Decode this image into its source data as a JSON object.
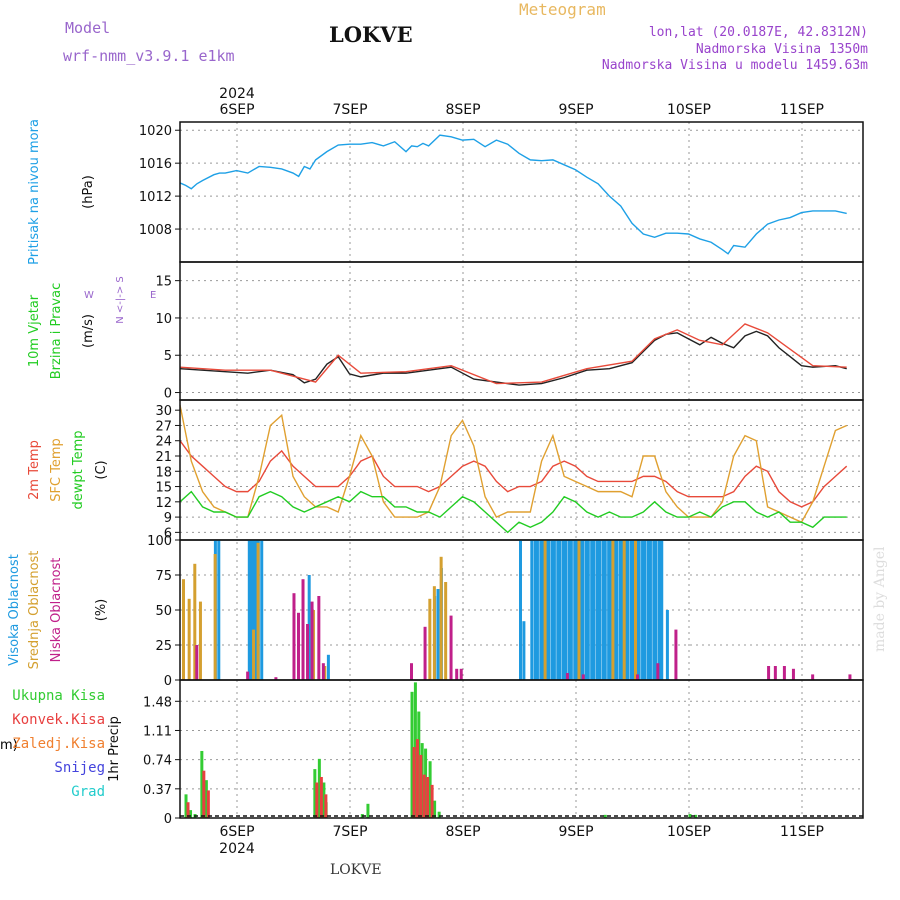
{
  "header": {
    "model_label": "Model",
    "model_name": "wrf-nmm_v3.9.1  e1km",
    "location": "LOKVE",
    "meteogram": "Meteogram",
    "coords": "lon,lat (20.0187E, 42.8312N)",
    "elevation": "Nadmorska Visina 1350m",
    "model_elevation": "Nadmorska Visina u modelu 1459.63m",
    "footer_location": "LOKVE",
    "watermark": "made by Angel"
  },
  "colors": {
    "pressure": "#1ea0e6",
    "t2m": "#e84a3a",
    "sfc": "#e0a030",
    "dewpt": "#22cc22",
    "cloud_high": "#1e9ae0",
    "cloud_mid": "#d4a030",
    "cloud_low": "#c0208a",
    "precip_total": "#33cc33",
    "precip_conv": "#e84040",
    "precip_frozen": "#f08030",
    "precip_snow": "#4444dd",
    "precip_grad": "#22cccc",
    "model": "#9966cc"
  },
  "time_axis": {
    "year": "2024",
    "days": [
      "6SEP",
      "7SEP",
      "8SEP",
      "9SEP",
      "10SEP",
      "11SEP"
    ]
  },
  "chart_data": [
    {
      "id": "pressure",
      "type": "line",
      "ylabel_lines": [
        "Pritisak na nivou mora"
      ],
      "unit": "(hPa)",
      "ylim": [
        1004,
        1021
      ],
      "yticks": [
        1008,
        1012,
        1016,
        1020
      ],
      "series": [
        {
          "x": [
            0.0,
            0.05,
            0.1,
            0.15,
            0.2,
            0.3,
            0.35,
            0.4,
            0.5,
            0.6,
            0.7,
            0.8,
            0.9,
            1.0,
            1.05,
            1.1,
            1.15,
            1.2,
            1.3,
            1.4,
            1.5,
            1.6,
            1.7,
            1.8,
            1.9,
            2.0,
            2.05,
            2.1,
            2.15,
            2.2,
            2.3,
            2.4,
            2.5,
            2.6,
            2.7,
            2.8,
            2.9,
            3.0,
            3.1,
            3.2,
            3.3,
            3.4,
            3.5,
            3.6,
            3.7,
            3.8,
            3.9,
            4.0,
            4.1,
            4.2,
            4.3,
            4.4,
            4.5,
            4.6,
            4.7,
            4.8,
            4.85,
            4.9,
            5.0,
            5.1,
            5.2,
            5.3,
            5.4,
            5.5,
            5.6,
            5.8,
            5.9
          ],
          "values": [
            1013.6,
            1013.3,
            1012.9,
            1013.5,
            1013.9,
            1014.6,
            1014.8,
            1014.8,
            1015.1,
            1014.8,
            1015.6,
            1015.5,
            1015.3,
            1014.8,
            1014.4,
            1015.6,
            1015.3,
            1016.4,
            1017.4,
            1018.2,
            1018.3,
            1018.3,
            1018.5,
            1018.1,
            1018.6,
            1017.4,
            1018.1,
            1018.0,
            1018.4,
            1018.1,
            1019.4,
            1019.2,
            1018.8,
            1018.9,
            1018.0,
            1018.8,
            1018.3,
            1017.2,
            1016.4,
            1016.3,
            1016.4,
            1015.8,
            1015.2,
            1014.3,
            1013.5,
            1012.0,
            1010.8,
            1008.7,
            1007.4,
            1007.0,
            1007.5,
            1007.5,
            1007.4,
            1006.8,
            1006.4,
            1005.5,
            1005.0,
            1006.0,
            1005.8,
            1007.4,
            1008.6,
            1009.1,
            1009.4,
            1010.0,
            1010.2,
            1010.2,
            1009.9
          ],
          "color": "#1ea0e6"
        }
      ]
    },
    {
      "id": "wind",
      "type": "line",
      "ylabel_lines": [
        "10m Vjetar",
        "Brzina i Pravac"
      ],
      "unit": "(m/s)",
      "ylim": [
        -1,
        17.5
      ],
      "yticks": [
        0,
        5,
        10,
        15
      ],
      "compass": {
        "n": "N",
        "s": "S",
        "e": "E",
        "w": "W"
      },
      "series": [
        {
          "name": "speed",
          "x": [
            0.0,
            0.2,
            0.4,
            0.6,
            0.8,
            1.0,
            1.1,
            1.2,
            1.3,
            1.4,
            1.5,
            1.6,
            1.8,
            2.0,
            2.2,
            2.4,
            2.6,
            2.8,
            3.0,
            3.2,
            3.4,
            3.6,
            3.8,
            4.0,
            4.1,
            4.2,
            4.3,
            4.4,
            4.5,
            4.6,
            4.7,
            4.8,
            4.9,
            5.0,
            5.1,
            5.2,
            5.3,
            5.4,
            5.5,
            5.6,
            5.8,
            5.9
          ],
          "values": [
            3.2,
            3.0,
            2.8,
            2.6,
            3.0,
            2.4,
            1.3,
            1.8,
            3.8,
            4.8,
            2.5,
            2.1,
            2.6,
            2.6,
            3.0,
            3.4,
            1.8,
            1.4,
            1.0,
            1.2,
            2.0,
            3.0,
            3.2,
            4.0,
            5.5,
            7.0,
            7.8,
            8.0,
            7.2,
            6.4,
            7.4,
            6.6,
            6.0,
            7.6,
            8.2,
            7.6,
            6.0,
            4.8,
            3.6,
            3.4,
            3.6,
            3.2
          ],
          "color": "#222222"
        },
        {
          "name": "gust",
          "x": [
            0.0,
            0.4,
            0.8,
            1.2,
            1.4,
            1.6,
            2.0,
            2.4,
            2.8,
            3.2,
            3.6,
            4.0,
            4.2,
            4.4,
            4.6,
            4.8,
            5.0,
            5.2,
            5.6,
            5.9
          ],
          "values": [
            3.4,
            3.0,
            3.0,
            1.4,
            5.0,
            2.6,
            2.8,
            3.6,
            1.2,
            1.4,
            3.2,
            4.2,
            7.2,
            8.4,
            7.0,
            6.4,
            9.2,
            8.0,
            3.6,
            3.4
          ],
          "color": "#e84a3a"
        }
      ]
    },
    {
      "id": "temperature",
      "type": "line",
      "ylabel_lines": [
        "2m Temp",
        "SFC Temp",
        "dewpt Temp"
      ],
      "unit": "(C)",
      "ylim": [
        4.5,
        32
      ],
      "yticks": [
        6,
        9,
        12,
        15,
        18,
        21,
        24,
        27,
        30
      ],
      "series": [
        {
          "name": "2m Temp",
          "x": [
            0.0,
            0.1,
            0.2,
            0.3,
            0.4,
            0.5,
            0.6,
            0.7,
            0.8,
            0.9,
            1.0,
            1.1,
            1.2,
            1.3,
            1.4,
            1.5,
            1.6,
            1.7,
            1.8,
            1.9,
            2.0,
            2.1,
            2.2,
            2.3,
            2.4,
            2.5,
            2.6,
            2.7,
            2.8,
            2.9,
            3.0,
            3.1,
            3.2,
            3.3,
            3.4,
            3.5,
            3.6,
            3.7,
            3.8,
            3.9,
            4.0,
            4.1,
            4.2,
            4.3,
            4.4,
            4.5,
            4.6,
            4.7,
            4.8,
            4.9,
            5.0,
            5.1,
            5.2,
            5.3,
            5.4,
            5.5,
            5.6,
            5.7,
            5.8,
            5.9
          ],
          "values": [
            24,
            21,
            19,
            17,
            15,
            14,
            14,
            16,
            20,
            22,
            19,
            17,
            15,
            15,
            15,
            17,
            20,
            21,
            17,
            15,
            15,
            15,
            14,
            15,
            17,
            19,
            20,
            19,
            16,
            14,
            15,
            15,
            16,
            19,
            20,
            19,
            17,
            16,
            16,
            16,
            16,
            17,
            17,
            16,
            14,
            13,
            13,
            13,
            13,
            14,
            17,
            19,
            18,
            14,
            12,
            11,
            12,
            15,
            17,
            19
          ],
          "color": "#e84a3a"
        },
        {
          "name": "SFC Temp",
          "x": [
            0.0,
            0.1,
            0.2,
            0.3,
            0.4,
            0.5,
            0.6,
            0.7,
            0.8,
            0.9,
            1.0,
            1.1,
            1.2,
            1.3,
            1.4,
            1.5,
            1.6,
            1.7,
            1.8,
            1.9,
            2.0,
            2.1,
            2.2,
            2.3,
            2.4,
            2.5,
            2.6,
            2.7,
            2.8,
            2.9,
            3.0,
            3.1,
            3.2,
            3.3,
            3.4,
            3.5,
            3.6,
            3.7,
            3.8,
            3.9,
            4.0,
            4.1,
            4.2,
            4.3,
            4.4,
            4.5,
            4.6,
            4.7,
            4.8,
            4.9,
            5.0,
            5.1,
            5.2,
            5.3,
            5.4,
            5.5,
            5.6,
            5.7,
            5.8,
            5.9
          ],
          "values": [
            31,
            20,
            14,
            11,
            10,
            9,
            9,
            17,
            27,
            29,
            17,
            13,
            11,
            11,
            10,
            17,
            25,
            21,
            12,
            9,
            9,
            9,
            10,
            15,
            25,
            28,
            23,
            13,
            9,
            10,
            10,
            10,
            20,
            25,
            17,
            16,
            15,
            14,
            14,
            14,
            13,
            21,
            21,
            14,
            11,
            9,
            9,
            9,
            12,
            21,
            25,
            24,
            11,
            10,
            9,
            8,
            12,
            19,
            26,
            27
          ],
          "color": "#e0a030"
        },
        {
          "name": "dewpt Temp",
          "x": [
            0.0,
            0.1,
            0.2,
            0.3,
            0.4,
            0.5,
            0.6,
            0.7,
            0.8,
            0.9,
            1.0,
            1.1,
            1.2,
            1.3,
            1.4,
            1.5,
            1.6,
            1.7,
            1.8,
            1.9,
            2.0,
            2.1,
            2.2,
            2.3,
            2.4,
            2.5,
            2.6,
            2.7,
            2.8,
            2.9,
            3.0,
            3.1,
            3.2,
            3.3,
            3.4,
            3.5,
            3.6,
            3.7,
            3.8,
            3.9,
            4.0,
            4.1,
            4.2,
            4.3,
            4.4,
            4.5,
            4.6,
            4.7,
            4.8,
            4.9,
            5.0,
            5.1,
            5.2,
            5.3,
            5.4,
            5.5,
            5.6,
            5.7,
            5.8,
            5.9
          ],
          "values": [
            12,
            14,
            11,
            10,
            10,
            9,
            9,
            13,
            14,
            13,
            11,
            10,
            11,
            12,
            13,
            12,
            14,
            13,
            13,
            11,
            11,
            10,
            10,
            9,
            11,
            13,
            12,
            10,
            8,
            6,
            8,
            7,
            8,
            10,
            13,
            12,
            10,
            9,
            10,
            9,
            9,
            10,
            12,
            10,
            9,
            9,
            10,
            9,
            11,
            12,
            12,
            10,
            9,
            10,
            8,
            8,
            7,
            9,
            9,
            9
          ],
          "color": "#22cc22"
        }
      ]
    },
    {
      "id": "cloud",
      "type": "bar",
      "ylabel_lines": [
        "Visoka Oblacnost",
        "Srednja Oblacnost",
        "Niska Oblacnost"
      ],
      "unit": "(%)",
      "ylim": [
        0,
        100
      ],
      "yticks": [
        0,
        25,
        50,
        75,
        100
      ],
      "series": [
        {
          "name": "Visoka Oblacnost",
          "color": "#1e9ae0",
          "x": [
            0.3,
            0.33,
            0.6,
            0.62,
            0.64,
            0.66,
            0.68,
            0.71,
            1.13,
            1.3,
            2.24,
            2.27,
            2.3,
            3.0,
            3.03,
            3.1,
            3.13,
            3.15,
            3.18,
            3.2,
            3.23,
            3.25,
            3.28,
            3.3,
            3.33,
            3.35,
            3.38,
            3.4,
            3.43,
            3.45,
            3.48,
            3.5,
            3.53,
            3.55,
            3.58,
            3.6,
            3.63,
            3.65,
            3.68,
            3.7,
            3.73,
            3.75,
            3.78,
            3.8,
            3.83,
            3.85,
            3.88,
            3.9,
            3.93,
            3.95,
            3.98,
            4.0,
            4.03,
            4.05,
            4.08,
            4.1,
            4.13,
            4.15,
            4.18,
            4.2,
            4.23,
            4.25,
            4.3
          ],
          "values": [
            100,
            100,
            100,
            100,
            100,
            100,
            100,
            100,
            75,
            18,
            60,
            65,
            80,
            100,
            42,
            100,
            100,
            100,
            100,
            100,
            100,
            100,
            100,
            100,
            100,
            100,
            100,
            100,
            100,
            100,
            100,
            100,
            100,
            100,
            100,
            100,
            100,
            100,
            100,
            100,
            100,
            100,
            100,
            100,
            100,
            100,
            100,
            100,
            100,
            100,
            100,
            100,
            100,
            100,
            100,
            100,
            100,
            100,
            100,
            100,
            100,
            100,
            50
          ]
        },
        {
          "name": "Srednja Oblacnost",
          "color": "#d4a030",
          "x": [
            0.0,
            0.05,
            0.1,
            0.15,
            0.28,
            0.62,
            0.66,
            1.15,
            1.25,
            2.18,
            2.22,
            2.28,
            2.32,
            3.2,
            3.5,
            3.8,
            3.9,
            4.0
          ],
          "values": [
            72,
            58,
            83,
            56,
            90,
            36,
            98,
            50,
            10,
            58,
            67,
            88,
            70,
            100,
            100,
            100,
            100,
            100
          ]
        },
        {
          "name": "Niska Oblacnost",
          "color": "#c0208a",
          "x": [
            0.1,
            0.55,
            0.8,
            0.96,
            1.0,
            1.04,
            1.08,
            1.12,
            1.18,
            1.22,
            2.0,
            2.12,
            2.35,
            2.4,
            2.44,
            3.38,
            3.52,
            4.0,
            4.18,
            4.34,
            5.16,
            5.22,
            5.3,
            5.38,
            5.55,
            5.88
          ],
          "values": [
            25,
            6,
            2,
            62,
            48,
            72,
            40,
            56,
            60,
            12,
            12,
            38,
            46,
            8,
            8,
            5,
            4,
            4,
            12,
            36,
            10,
            10,
            10,
            8,
            4,
            4
          ]
        }
      ]
    },
    {
      "id": "precip",
      "type": "bar",
      "ylabel_lines": [
        "1hr Precip"
      ],
      "unit": "(mm)",
      "ylim": [
        0,
        1.75
      ],
      "yticks": [
        0,
        0.37,
        0.74,
        1.11,
        1.48
      ],
      "legend": [
        "Ukupna Kisa",
        "Konvek.Kisa",
        "Zaledj.Kisa",
        "Snijeg",
        "Grad"
      ],
      "series": [
        {
          "name": "Ukupna Kisa",
          "color": "#33cc33",
          "x": [
            0.04,
            0.08,
            0.12,
            0.18,
            0.22,
            1.18,
            1.22,
            1.26,
            1.28,
            1.6,
            1.65,
            2.04,
            2.07,
            2.1,
            2.13,
            2.16,
            2.2,
            2.24,
            2.28,
            3.75,
            4.5,
            4.55
          ],
          "values": [
            0.3,
            0.1,
            0.05,
            0.85,
            0.48,
            0.62,
            0.75,
            0.45,
            0.2,
            0.05,
            0.18,
            1.6,
            1.72,
            1.35,
            0.95,
            0.88,
            0.72,
            0.22,
            0.08,
            0.04,
            0.05,
            0.04
          ]
        },
        {
          "name": "Konvek.Kisa",
          "color": "#e84040",
          "x": [
            0.04,
            0.18,
            0.22,
            1.18,
            1.22,
            1.26,
            2.04,
            2.07,
            2.1,
            2.13,
            2.16,
            2.2
          ],
          "values": [
            0.2,
            0.6,
            0.35,
            0.45,
            0.52,
            0.3,
            0.9,
            1.0,
            0.8,
            0.55,
            0.52,
            0.42
          ]
        }
      ]
    }
  ]
}
